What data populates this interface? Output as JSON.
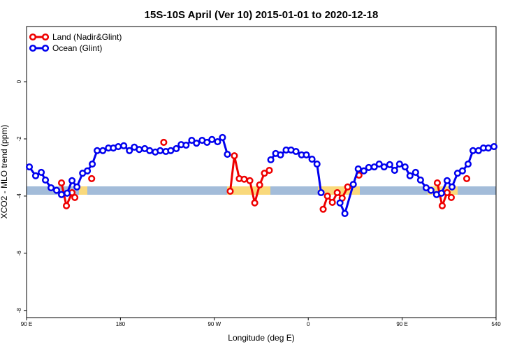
{
  "chart_data": {
    "type": "line",
    "title": "15S-10S April (Ver 10)   2015-01-01 to 2020-12-18",
    "x_label": "Longitude (deg E)",
    "y_label": "XCO2 - MLO trend (ppm)",
    "xlim": [
      90,
      540
    ],
    "ylim": [
      -8.25,
      1.93
    ],
    "xticks": [
      {
        "value": 90,
        "label": "90 E"
      },
      180,
      {
        "value": 270,
        "label": "90 W"
      },
      {
        "value": 360,
        "label": "0"
      },
      {
        "value": 450,
        "label": "90 E"
      },
      540
    ],
    "yticks": [
      0,
      -2,
      -4,
      -6,
      -8
    ],
    "legend": "top-left",
    "series": [
      {
        "name": "Land (Nadir&Glint)",
        "color": "#ee0000",
        "x": [
          123.5,
          128.2,
          133.6,
          136.3,
          null,
          152.4,
          null,
          221.5,
          null,
          285.2,
          289.2,
          293.9,
          298.6,
          304.0,
          308.7,
          313.4,
          318.0,
          322.7,
          null,
          374.3,
          378.4,
          383.1,
          387.8,
          392.5,
          397.8,
          null,
          408.6,
          null,
          483.7,
          488.4,
          493.1,
          497.1,
          null,
          511.9
        ],
        "values": [
          -3.54,
          -4.34,
          -3.88,
          -4.05,
          null,
          -3.39,
          null,
          -2.12,
          null,
          -3.83,
          -2.59,
          -3.39,
          -3.41,
          -3.46,
          -4.24,
          -3.61,
          -3.2,
          -3.1,
          null,
          -4.46,
          -4.0,
          -4.22,
          -3.88,
          -4.07,
          -3.68,
          null,
          -3.27,
          null,
          -3.54,
          -4.34,
          -3.88,
          -4.05,
          null,
          -3.39
        ]
      },
      {
        "name": "Ocean (Glint)",
        "color": "#0000ee",
        "x": [
          92.7,
          98.7,
          104.1,
          108.1,
          113.5,
          118.8,
          123.5,
          128.9,
          133.6,
          138.3,
          143.7,
          148.3,
          153.0,
          157.7,
          163.1,
          168.5,
          173.2,
          177.9,
          183.2,
          188.6,
          193.3,
          198.0,
          203.3,
          208.0,
          213.4,
          218.1,
          223.5,
          228.2,
          233.5,
          238.2,
          242.9,
          248.3,
          252.9,
          258.3,
          263.0,
          267.7,
          273.1,
          277.8,
          282.5,
          null,
          324.1,
          328.8,
          333.4,
          338.8,
          343.5,
          348.2,
          353.6,
          358.2,
          363.6,
          368.4,
          372.3,
          null,
          390.4,
          395.1,
          403.2,
          407.9,
          413.3,
          418.0,
          423.3,
          428.0,
          432.7,
          438.1,
          442.8,
          447.5,
          452.8,
          457.5,
          462.9,
          467.6,
          473.0,
          477.6,
          483.0,
          487.7,
          493.1,
          497.8,
          503.1,
          507.8,
          513.2,
          517.9,
          523.2,
          527.9,
          532.6,
          538.0
        ],
        "values": [
          -2.98,
          -3.29,
          -3.17,
          -3.44,
          -3.71,
          -3.8,
          -3.95,
          -3.9,
          -3.46,
          -3.68,
          -3.2,
          -3.12,
          -2.88,
          -2.41,
          -2.41,
          -2.32,
          -2.32,
          -2.27,
          -2.24,
          -2.41,
          -2.29,
          -2.37,
          -2.34,
          -2.41,
          -2.46,
          -2.41,
          -2.44,
          -2.41,
          -2.34,
          -2.2,
          -2.22,
          -2.05,
          -2.15,
          -2.05,
          -2.12,
          -2.02,
          -2.1,
          -1.95,
          -2.54,
          null,
          -2.73,
          -2.51,
          -2.56,
          -2.39,
          -2.39,
          -2.44,
          -2.56,
          -2.56,
          -2.71,
          -2.88,
          -3.88,
          null,
          -4.24,
          -4.61,
          -3.59,
          -3.05,
          -3.12,
          -3.0,
          -2.98,
          -2.88,
          -2.98,
          -2.9,
          -3.1,
          -2.88,
          -2.98,
          -3.29,
          -3.17,
          -3.44,
          -3.71,
          -3.8,
          -3.95,
          -3.9,
          -3.46,
          -3.68,
          -3.2,
          -3.12,
          -2.88,
          -2.41,
          -2.41,
          -2.32,
          -2.32,
          -2.27
        ]
      }
    ]
  }
}
